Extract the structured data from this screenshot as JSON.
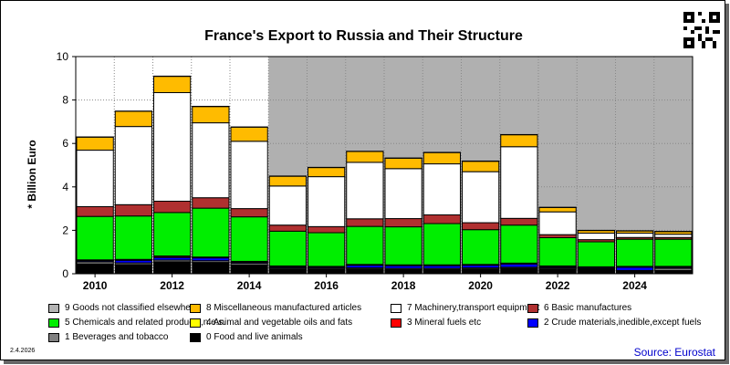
{
  "title": "France's Export to Russia and Their Structure",
  "date": "2.4.2026",
  "source": "Source: Eurostat",
  "chart_data": {
    "type": "bar",
    "stacked": true,
    "title": "France's Export to Russia and Their Structure",
    "ylabel": "* Billion Euro",
    "xlabel": "",
    "ylim": [
      0,
      10
    ],
    "yticks": [
      0,
      2,
      4,
      6,
      8,
      10
    ],
    "xtick_labels": [
      "2010",
      "2012",
      "2014",
      "2016",
      "2018",
      "2020",
      "2022",
      "2024"
    ],
    "categories": [
      "2010",
      "2011",
      "2012",
      "2013",
      "2014",
      "2015",
      "2016",
      "2017",
      "2018",
      "2019",
      "2020",
      "2021",
      "2022",
      "2023",
      "2024",
      "2025"
    ],
    "grid": true,
    "legend_position": "bottom",
    "series": [
      {
        "name": "0 Food and live animals",
        "color": "#000000",
        "values": [
          0.45,
          0.42,
          0.55,
          0.52,
          0.4,
          0.22,
          0.2,
          0.22,
          0.2,
          0.2,
          0.22,
          0.25,
          0.22,
          0.2,
          0.12,
          0.15
        ]
      },
      {
        "name": "1 Beverages and tobacco",
        "color": "#808080",
        "values": [
          0.1,
          0.08,
          0.08,
          0.08,
          0.08,
          0.05,
          0.05,
          0.05,
          0.05,
          0.05,
          0.05,
          0.05,
          0.05,
          0.03,
          0.03,
          0.1
        ]
      },
      {
        "name": "2 Crude materials,inedible,except fuels",
        "color": "#0000ff",
        "values": [
          0.05,
          0.12,
          0.12,
          0.13,
          0.05,
          0.05,
          0.05,
          0.12,
          0.12,
          0.12,
          0.12,
          0.15,
          0.05,
          0.05,
          0.15,
          0.05
        ]
      },
      {
        "name": "3 Mineral fuels etc",
        "color": "#ff0000",
        "values": [
          0.02,
          0.02,
          0.05,
          0.02,
          0.02,
          0.02,
          0.02,
          0.02,
          0.02,
          0.02,
          0.02,
          0.02,
          0.02,
          0.02,
          0.02,
          0.02
        ]
      },
      {
        "name": "4 Animal and vegetable oils and fats",
        "color": "#ffff00",
        "values": [
          0.02,
          0.02,
          0.02,
          0.02,
          0.02,
          0.02,
          0.02,
          0.02,
          0.02,
          0.02,
          0.02,
          0.02,
          0.02,
          0.02,
          0.02,
          0.02
        ]
      },
      {
        "name": "5 Chemicals and related products,n.e.s.",
        "color": "#00ee00",
        "values": [
          2.0,
          2.0,
          2.0,
          2.25,
          2.05,
          1.6,
          1.55,
          1.75,
          1.75,
          1.9,
          1.6,
          1.75,
          1.3,
          1.15,
          1.25,
          1.25
        ]
      },
      {
        "name": "6 Basic manufactures",
        "color": "#b03030",
        "values": [
          0.45,
          0.52,
          0.52,
          0.48,
          0.38,
          0.28,
          0.28,
          0.35,
          0.38,
          0.4,
          0.32,
          0.31,
          0.14,
          0.1,
          0.08,
          0.08
        ]
      },
      {
        "name": "7 Machinery,transport equipment",
        "color": "#ffffff",
        "values": [
          2.6,
          3.6,
          5.0,
          3.45,
          3.1,
          1.8,
          2.3,
          2.6,
          2.3,
          2.35,
          2.35,
          3.3,
          1.05,
          0.3,
          0.2,
          0.15
        ]
      },
      {
        "name": "8 Miscellaneous manufactured articles",
        "color": "#ffbb00",
        "values": [
          0.6,
          0.7,
          0.75,
          0.75,
          0.65,
          0.45,
          0.42,
          0.5,
          0.48,
          0.52,
          0.48,
          0.55,
          0.2,
          0.12,
          0.1,
          0.12
        ]
      },
      {
        "name": "9 Goods not classified elsewhere",
        "color": "#b4b4b4",
        "values": [
          0.01,
          0.01,
          0.01,
          0.01,
          0.01,
          0.01,
          0.01,
          0.01,
          0.01,
          0.01,
          0.01,
          0.01,
          0.01,
          0.01,
          0.01,
          0.01
        ]
      }
    ],
    "legend_order": [
      9,
      8,
      7,
      6,
      5,
      4,
      3,
      2,
      1,
      0
    ]
  }
}
